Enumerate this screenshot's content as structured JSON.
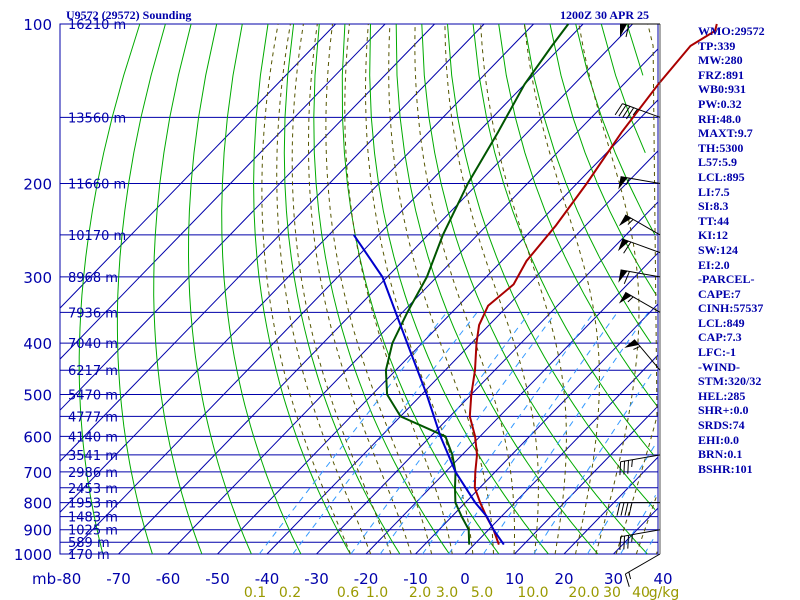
{
  "header": {
    "station": "U9572 (29572) Sounding",
    "time": "1200Z 30 APR 25"
  },
  "indices": [
    "WMO:29572",
    "TP:339",
    "MW:280",
    "FRZ:891",
    "WB0:931",
    "PW:0.32",
    "RH:48.0",
    "MAXT:9.7",
    "TH:5300",
    "L57:5.9",
    "LCL:895",
    "LI:7.5",
    "SI:8.3",
    "TT:44",
    "KI:12",
    "SW:124",
    "EI:2.0",
    "-PARCEL-",
    "CAPE:7",
    "CINH:57537",
    "LCL:849",
    "CAP:7.3",
    "LFC:-1",
    "-WIND-",
    "STM:320/32",
    "HEL:285",
    "SHR+:0.0",
    "SRDS:74",
    "EHI:0.0",
    "BRN:0.1",
    "BSHR:101"
  ],
  "colors": {
    "grid": "#0000aa",
    "temperature": "#aa0000",
    "dewpoint": "#005500",
    "parcel": "#0000cc",
    "dry_adiabat": "#00aa00",
    "moist_adiabat": "#555500",
    "mixing_ratio": "#3399ff",
    "wind": "#000000",
    "label": "#0000aa",
    "mixing_label": "#999900"
  },
  "chart_data": {
    "type": "line",
    "pressure_unit": "mb",
    "pressure_levels_mb": [
      100,
      200,
      300,
      400,
      500,
      600,
      700,
      800,
      900,
      1000
    ],
    "temperature_ticks_c": [
      -80,
      -70,
      -60,
      -50,
      -40,
      -30,
      -20,
      -10,
      0,
      10,
      20,
      30,
      40
    ],
    "temperature_tick_labels": [
      "-80",
      "-70",
      "-60",
      "-50",
      "-40",
      "-30",
      "-20",
      "-10",
      "0",
      "10",
      "20",
      "30",
      "40"
    ],
    "height_labels": [
      {
        "p": 100,
        "label": "16210 m"
      },
      {
        "p": 150,
        "label": "13560 m"
      },
      {
        "p": 200,
        "label": "11660 m"
      },
      {
        "p": 250,
        "label": "10170 m"
      },
      {
        "p": 300,
        "label": "8968 m"
      },
      {
        "p": 350,
        "label": "7936 m"
      },
      {
        "p": 400,
        "label": "7040 m"
      },
      {
        "p": 450,
        "label": "6217 m"
      },
      {
        "p": 500,
        "label": "5470 m"
      },
      {
        "p": 550,
        "label": "4777 m"
      },
      {
        "p": 600,
        "label": "4140 m"
      },
      {
        "p": 650,
        "label": "3541 m"
      },
      {
        "p": 700,
        "label": "2986 m"
      },
      {
        "p": 750,
        "label": "2453 m"
      },
      {
        "p": 800,
        "label": "1953 m"
      },
      {
        "p": 850,
        "label": "1483 m"
      },
      {
        "p": 900,
        "label": "1025 m"
      },
      {
        "p": 950,
        "label": "589 m"
      },
      {
        "p": 1000,
        "label": "170 m"
      }
    ],
    "mixing_ratio_labels": [
      "0.1",
      "0.2",
      "0.6",
      "1.0",
      "2.0",
      "3.0",
      "5.0",
      "10.0",
      "20.0",
      "30",
      "40",
      "g/kg"
    ],
    "series": [
      {
        "key": "temperature",
        "points": [
          {
            "p": 960,
            "t": 5
          },
          {
            "p": 900,
            "t": 1
          },
          {
            "p": 850,
            "t": -3
          },
          {
            "p": 800,
            "t": -7
          },
          {
            "p": 750,
            "t": -11
          },
          {
            "p": 700,
            "t": -14
          },
          {
            "p": 650,
            "t": -17
          },
          {
            "p": 600,
            "t": -21
          },
          {
            "p": 550,
            "t": -26
          },
          {
            "p": 500,
            "t": -30
          },
          {
            "p": 450,
            "t": -34
          },
          {
            "p": 400,
            "t": -39
          },
          {
            "p": 370,
            "t": -42
          },
          {
            "p": 340,
            "t": -44
          },
          {
            "p": 310,
            "t": -43
          },
          {
            "p": 280,
            "t": -45
          },
          {
            "p": 240,
            "t": -46
          },
          {
            "p": 200,
            "t": -48
          },
          {
            "p": 160,
            "t": -51
          },
          {
            "p": 130,
            "t": -53
          },
          {
            "p": 110,
            "t": -54
          },
          {
            "p": 103,
            "t": -52
          },
          {
            "p": 100,
            "t": -53
          }
        ]
      },
      {
        "key": "dewpoint",
        "points": [
          {
            "p": 960,
            "t": -1
          },
          {
            "p": 900,
            "t": -4
          },
          {
            "p": 850,
            "t": -8
          },
          {
            "p": 800,
            "t": -12
          },
          {
            "p": 750,
            "t": -15
          },
          {
            "p": 700,
            "t": -18
          },
          {
            "p": 650,
            "t": -22
          },
          {
            "p": 600,
            "t": -27
          },
          {
            "p": 550,
            "t": -40
          },
          {
            "p": 500,
            "t": -47
          },
          {
            "p": 450,
            "t": -52
          },
          {
            "p": 400,
            "t": -56
          },
          {
            "p": 350,
            "t": -59
          },
          {
            "p": 300,
            "t": -62
          },
          {
            "p": 250,
            "t": -67
          },
          {
            "p": 200,
            "t": -72
          },
          {
            "p": 160,
            "t": -76
          },
          {
            "p": 130,
            "t": -80
          },
          {
            "p": 110,
            "t": -82
          },
          {
            "p": 100,
            "t": -83
          }
        ]
      },
      {
        "key": "parcel",
        "points": [
          {
            "p": 960,
            "t": 6
          },
          {
            "p": 900,
            "t": 1
          },
          {
            "p": 849,
            "t": -3
          },
          {
            "p": 800,
            "t": -8
          },
          {
            "p": 700,
            "t": -18
          },
          {
            "p": 600,
            "t": -28
          },
          {
            "p": 500,
            "t": -39
          },
          {
            "p": 400,
            "t": -53
          },
          {
            "p": 300,
            "t": -71
          },
          {
            "p": 250,
            "t": -85
          }
        ]
      }
    ],
    "wind_barbs": [
      {
        "p": 100,
        "dir": 270,
        "speed_kt": 60
      },
      {
        "p": 150,
        "dir": 290,
        "speed_kt": 45
      },
      {
        "p": 200,
        "dir": 280,
        "speed_kt": 55
      },
      {
        "p": 250,
        "dir": 300,
        "speed_kt": 55
      },
      {
        "p": 270,
        "dir": 290,
        "speed_kt": 60
      },
      {
        "p": 300,
        "dir": 280,
        "speed_kt": 60
      },
      {
        "p": 350,
        "dir": 300,
        "speed_kt": 55
      },
      {
        "p": 450,
        "dir": 320,
        "speed_kt": 55
      },
      {
        "p": 650,
        "dir": 260,
        "speed_kt": 35
      },
      {
        "p": 800,
        "dir": 270,
        "speed_kt": 40
      },
      {
        "p": 900,
        "dir": 260,
        "speed_kt": 35
      },
      {
        "p": 1000,
        "dir": 240,
        "speed_kt": 15
      }
    ]
  }
}
